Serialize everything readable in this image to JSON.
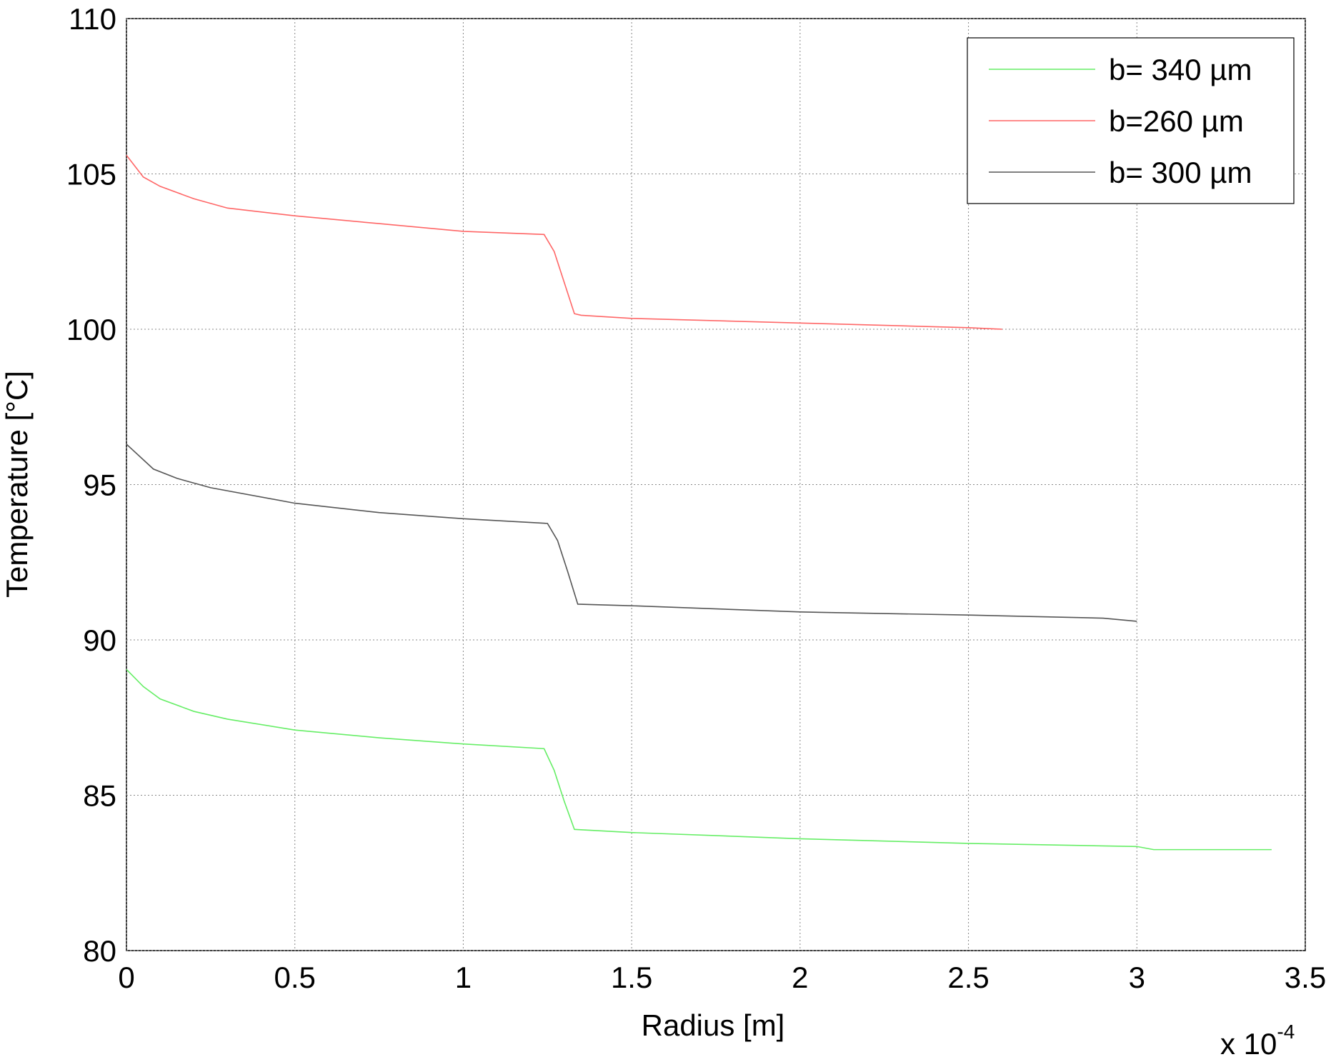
{
  "chart_data": {
    "type": "line",
    "x_label": "Radius [m]",
    "y_label": "Temperature [°C]",
    "x_scale_label": {
      "base": "x 10",
      "exponent": "-4"
    },
    "xlim": [
      0,
      3.5
    ],
    "xticks": [
      0,
      0.5,
      1,
      1.5,
      2,
      2.5,
      3,
      3.5
    ],
    "ylim": [
      80,
      110
    ],
    "yticks": [
      80,
      85,
      90,
      95,
      100,
      105,
      110
    ],
    "grid": true,
    "legend": "upper right",
    "series": [
      {
        "name": "b= 340 µm",
        "color": "#66ee66",
        "x": [
          0,
          0.05,
          0.1,
          0.2,
          0.3,
          0.5,
          0.75,
          1.0,
          1.24,
          1.27,
          1.3,
          1.33,
          1.5,
          2.0,
          2.5,
          3.0,
          3.05,
          3.4
        ],
        "values": [
          89.05,
          88.5,
          88.1,
          87.7,
          87.45,
          87.1,
          86.85,
          86.65,
          86.5,
          85.8,
          84.8,
          83.9,
          83.8,
          83.6,
          83.45,
          83.35,
          83.25,
          83.25
        ]
      },
      {
        "name": "b=260 µm",
        "color": "#ff6666",
        "x": [
          0,
          0.05,
          0.1,
          0.2,
          0.3,
          0.5,
          0.75,
          1.0,
          1.24,
          1.27,
          1.3,
          1.33,
          1.35,
          1.5,
          2.0,
          2.5,
          2.6
        ],
        "values": [
          105.6,
          104.9,
          104.6,
          104.2,
          103.9,
          103.65,
          103.4,
          103.15,
          103.05,
          102.5,
          101.5,
          100.5,
          100.45,
          100.35,
          100.2,
          100.05,
          100.0
        ]
      },
      {
        "name": "b= 300 µm",
        "color": "#555555",
        "x": [
          0,
          0.08,
          0.15,
          0.25,
          0.5,
          0.75,
          1.0,
          1.25,
          1.28,
          1.31,
          1.34,
          1.5,
          2.0,
          2.5,
          2.9,
          3.0
        ],
        "values": [
          96.3,
          95.5,
          95.2,
          94.9,
          94.4,
          94.1,
          93.9,
          93.75,
          93.2,
          92.2,
          91.15,
          91.1,
          90.9,
          90.8,
          90.7,
          90.6
        ]
      }
    ]
  }
}
